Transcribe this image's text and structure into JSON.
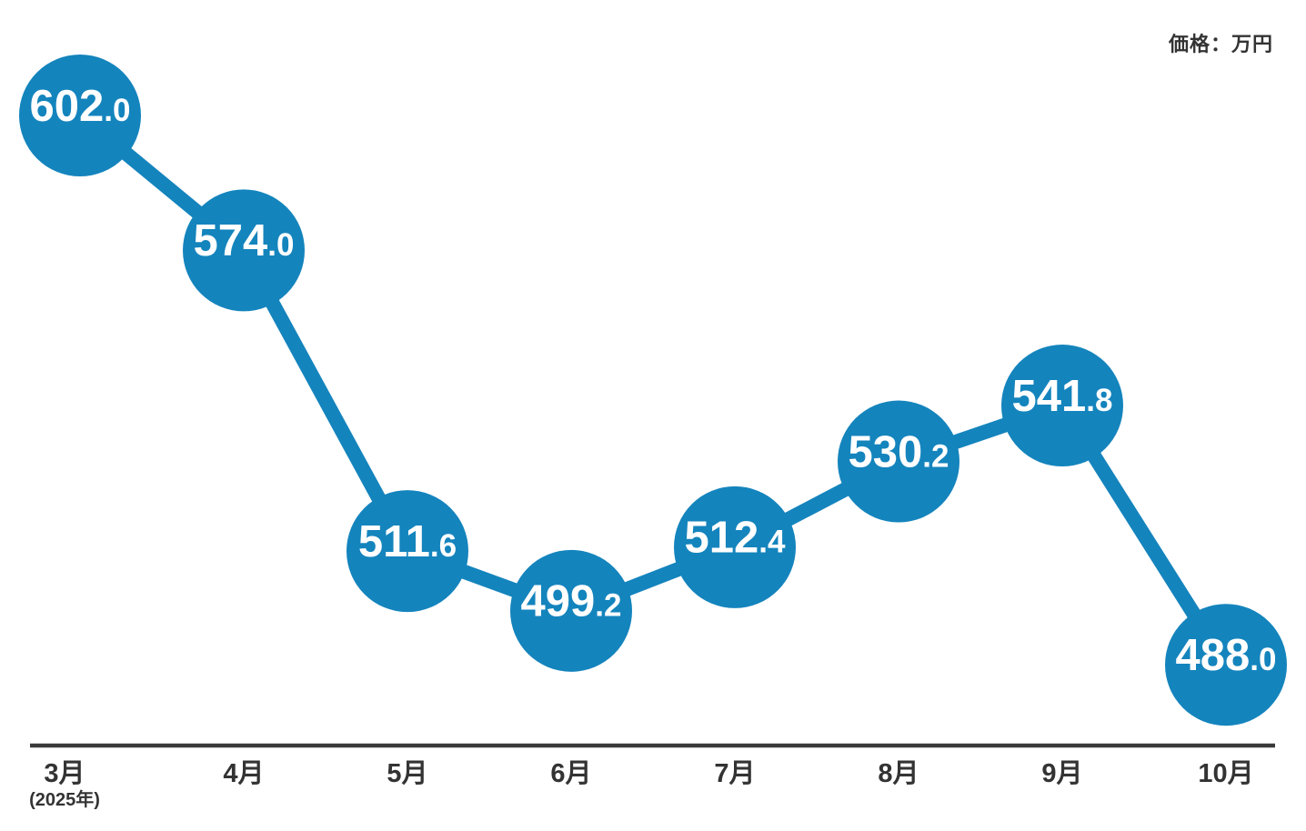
{
  "chart_data": {
    "type": "line",
    "title": "価格：万円",
    "unit": "万円",
    "categories": [
      "3月",
      "4月",
      "5月",
      "6月",
      "7月",
      "8月",
      "9月",
      "10月"
    ],
    "x_first_sub_label": "(2025年)",
    "series": [
      {
        "name": "価格",
        "values": [
          602.0,
          574.0,
          511.6,
          499.2,
          512.4,
          530.2,
          541.8,
          488.0
        ],
        "labels": [
          "602.0",
          "574.0",
          "511.6",
          "499.2",
          "512.4",
          "530.2",
          "541.8",
          "488.0"
        ]
      }
    ],
    "ylim": [
      480,
      615
    ],
    "grid": false,
    "legend_position": "none",
    "colors": {
      "line": "#1484bd",
      "marker_fill": "#1484bd",
      "marker_text": "#ffffff",
      "axis_line": "#3a3a3a",
      "axis_text": "#333333"
    }
  }
}
